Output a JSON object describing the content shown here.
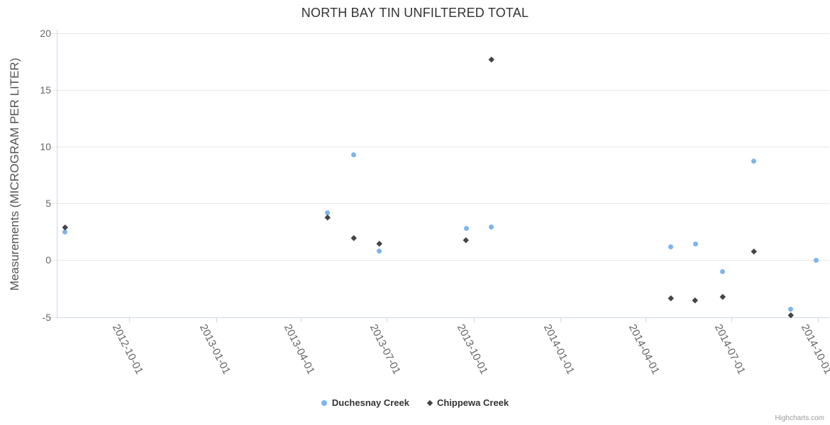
{
  "title": "NORTH BAY TIN UNFILTERED TOTAL",
  "credits": "Highcharts.com",
  "colors": {
    "series1": "#7cb5ec",
    "series2": "#434348",
    "grid": "#e6e6e6",
    "axis": "#ccd6eb",
    "labels": "#666666",
    "title": "#333333"
  },
  "chart_data": {
    "type": "scatter",
    "title": "NORTH BAY TIN UNFILTERED TOTAL",
    "xlabel": "",
    "ylabel": "Measurements (MICROGRAM PER LITER)",
    "x_axis_type": "datetime",
    "grid": true,
    "legend_position": "bottom-center",
    "xlim": [
      "2012-07-16",
      "2014-10-13"
    ],
    "ylim": [
      -5,
      20.3
    ],
    "y_ticks": [
      20,
      15,
      10,
      5,
      0,
      -5
    ],
    "x_ticks": [
      "2012-10-01",
      "2013-01-01",
      "2013-04-01",
      "2013-07-01",
      "2013-10-01",
      "2014-01-01",
      "2014-04-01",
      "2014-07-01",
      "2014-10-01"
    ],
    "series": [
      {
        "name": "Duchesnay Creek",
        "marker": "circle",
        "color": "#7cb5ec",
        "points": [
          [
            "2012-07-25",
            2.5
          ],
          [
            "2013-04-29",
            4.2
          ],
          [
            "2013-05-27",
            9.3
          ],
          [
            "2013-06-23",
            0.8
          ],
          [
            "2013-09-23",
            2.8
          ],
          [
            "2013-10-20",
            2.9
          ],
          [
            "2014-04-28",
            1.2
          ],
          [
            "2014-05-24",
            1.4
          ],
          [
            "2014-06-22",
            -1.0
          ],
          [
            "2014-07-25",
            8.7
          ],
          [
            "2014-09-02",
            -4.3
          ],
          [
            "2014-09-29",
            0.0
          ]
        ]
      },
      {
        "name": "Chippewa Creek",
        "marker": "diamond",
        "color": "#434348",
        "points": [
          [
            "2012-07-25",
            2.9
          ],
          [
            "2013-04-29",
            3.8
          ],
          [
            "2013-05-27",
            2.0
          ],
          [
            "2013-06-23",
            1.5
          ],
          [
            "2013-09-23",
            1.8
          ],
          [
            "2013-10-20",
            17.7
          ],
          [
            "2014-04-28",
            -3.3
          ],
          [
            "2014-05-24",
            -3.5
          ],
          [
            "2014-06-22",
            -3.2
          ],
          [
            "2014-07-25",
            0.8
          ],
          [
            "2014-09-02",
            -4.8
          ]
        ]
      }
    ]
  }
}
